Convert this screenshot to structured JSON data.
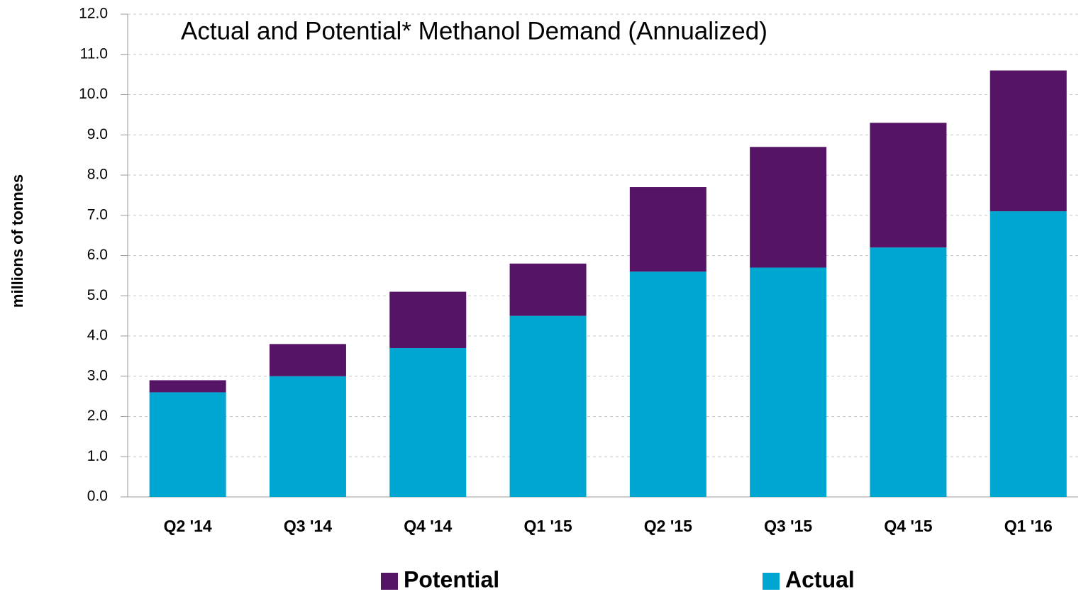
{
  "chart_data": {
    "type": "bar",
    "stacked": true,
    "title": "Actual and Potential* Methanol Demand (Annualized)",
    "y_label": "millions of tonnes",
    "categories": [
      "Q2 '14",
      "Q3 '14",
      "Q4 '14",
      "Q1 '15",
      "Q2 '15",
      "Q3 '15",
      "Q4 '15",
      "Q1 '16"
    ],
    "series": [
      {
        "name": "Actual",
        "color": "#00a6d2",
        "values": [
          2.6,
          3.0,
          3.7,
          4.5,
          5.6,
          5.7,
          6.2,
          7.1
        ]
      },
      {
        "name": "Potential",
        "color": "#561467",
        "values": [
          0.3,
          0.8,
          1.4,
          1.3,
          2.1,
          3.0,
          3.1,
          3.5
        ]
      }
    ],
    "ylim": [
      0,
      12
    ],
    "yticks": [
      {
        "value": 0,
        "label": "0.0"
      },
      {
        "value": 1,
        "label": "1.0"
      },
      {
        "value": 2,
        "label": "2.0"
      },
      {
        "value": 3,
        "label": "3.0"
      },
      {
        "value": 4,
        "label": "4.0"
      },
      {
        "value": 5,
        "label": "5.0"
      },
      {
        "value": 6,
        "label": "6.0"
      },
      {
        "value": 7,
        "label": "7.0"
      },
      {
        "value": 8,
        "label": "8.0"
      },
      {
        "value": 9,
        "label": "9.0"
      },
      {
        "value": 10,
        "label": "10.0"
      },
      {
        "value": 11,
        "label": "11.0"
      },
      {
        "value": 12,
        "label": "12.0"
      }
    ],
    "grid": true
  }
}
